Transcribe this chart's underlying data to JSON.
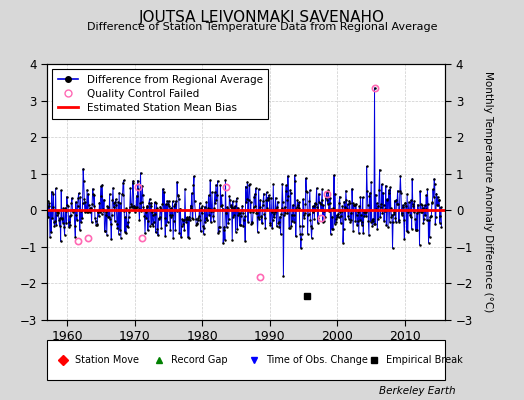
{
  "title": "JOUTSA LEIVONMAKI SAVENAHO",
  "subtitle": "Difference of Station Temperature Data from Regional Average",
  "ylabel": "Monthly Temperature Anomaly Difference (°C)",
  "xlabel_years": [
    1960,
    1970,
    1980,
    1990,
    2000,
    2010
  ],
  "xmin": 1957,
  "xmax": 2016,
  "ymin": -3,
  "ymax": 4,
  "bias_line_y": 0.0,
  "line_color": "#0000dd",
  "bias_color": "#ff0000",
  "qc_color": "#ff69b4",
  "bg_color": "#d8d8d8",
  "plot_bg_color": "#ffffff",
  "grid_color": "#cccccc",
  "empirical_break_x": 1995.5,
  "empirical_break_y": -2.35,
  "qc_fail_x_high": 2005.5,
  "qc_fail_y_high": 3.35,
  "qc_fail_points": [
    [
      1961.5,
      -0.85
    ],
    [
      1963.0,
      -0.75
    ],
    [
      1970.5,
      0.65
    ],
    [
      1971.0,
      -0.75
    ],
    [
      1983.5,
      0.65
    ],
    [
      1988.5,
      -1.82
    ],
    [
      1997.5,
      -0.2
    ],
    [
      1998.5,
      0.45
    ],
    [
      2005.5,
      3.35
    ]
  ],
  "spike_down_x": 1992.0,
  "spike_down_y": -1.8,
  "seed": 77
}
